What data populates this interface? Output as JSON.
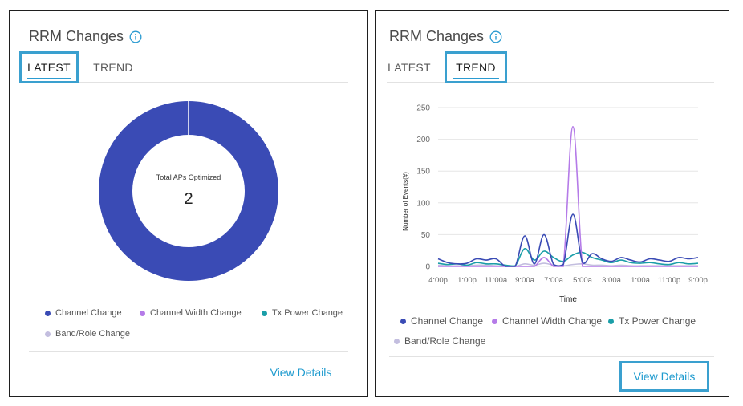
{
  "colors": {
    "channel_change": "#3a4bb5",
    "channel_width_change": "#b57be8",
    "tx_power_change": "#1a9ea8",
    "band_role_change": "#c3bedf",
    "accent": "#2b9bd1",
    "highlight": "#3aa0cf"
  },
  "left_panel": {
    "title": "RRM Changes",
    "info_icon": "info-circle-icon",
    "tabs": [
      {
        "label": "LATEST",
        "active": true
      },
      {
        "label": "TREND",
        "active": false
      }
    ],
    "view_details": "View Details"
  },
  "right_panel": {
    "title": "RRM Changes",
    "info_icon": "info-circle-icon",
    "tabs": [
      {
        "label": "LATEST",
        "active": false
      },
      {
        "label": "TREND",
        "active": true
      }
    ],
    "view_details": "View Details"
  },
  "legend": [
    {
      "label": "Channel Change",
      "color": "#3a4bb5"
    },
    {
      "label": "Channel Width Change",
      "color": "#b57be8"
    },
    {
      "label": "Tx Power Change",
      "color": "#1a9ea8"
    },
    {
      "label": "Band/Role Change",
      "color": "#c3bedf"
    }
  ],
  "chart_data": [
    {
      "type": "pie",
      "center_label": "Total APs Optimized",
      "center_value": "2",
      "slices": [
        {
          "name": "Channel Change",
          "value": 2
        },
        {
          "name": "Channel Width Change",
          "value": 0
        },
        {
          "name": "Tx Power Change",
          "value": 0
        },
        {
          "name": "Band/Role Change",
          "value": 0
        }
      ]
    },
    {
      "type": "line",
      "xlabel": "Time",
      "ylabel": "Number of Events(#)",
      "ylim": [
        0,
        250
      ],
      "yticks": [
        "0",
        "50",
        "100",
        "150",
        "200",
        "250"
      ],
      "xticks": [
        "4:00p",
        "1:00p",
        "11:00a",
        "9:00a",
        "7:00a",
        "5:00a",
        "3:00a",
        "1:00a",
        "11:00p",
        "9:00p"
      ],
      "x_count": 28,
      "grid": true,
      "series": [
        {
          "name": "Channel Change",
          "values": [
            12,
            6,
            4,
            5,
            12,
            10,
            12,
            0,
            0,
            48,
            4,
            50,
            3,
            3,
            82,
            6,
            20,
            12,
            8,
            14,
            10,
            7,
            12,
            10,
            8,
            14,
            12,
            14
          ]
        },
        {
          "name": "Channel Width Change",
          "values": [
            0,
            0,
            0,
            0,
            0,
            0,
            0,
            0,
            0,
            0,
            0,
            14,
            0,
            0,
            220,
            0,
            0,
            0,
            0,
            0,
            0,
            0,
            0,
            0,
            0,
            0,
            0,
            0
          ]
        },
        {
          "name": "Tx Power Change",
          "values": [
            5,
            3,
            4,
            2,
            6,
            4,
            4,
            2,
            1,
            28,
            10,
            24,
            14,
            8,
            18,
            22,
            14,
            10,
            6,
            10,
            6,
            5,
            6,
            4,
            3,
            6,
            4,
            5
          ]
        },
        {
          "name": "Band/Role Change",
          "values": [
            2,
            1,
            1,
            1,
            2,
            2,
            1,
            1,
            0,
            4,
            2,
            5,
            2,
            1,
            3,
            4,
            2,
            2,
            1,
            2,
            1,
            1,
            1,
            1,
            1,
            1,
            1,
            1
          ]
        }
      ]
    }
  ]
}
